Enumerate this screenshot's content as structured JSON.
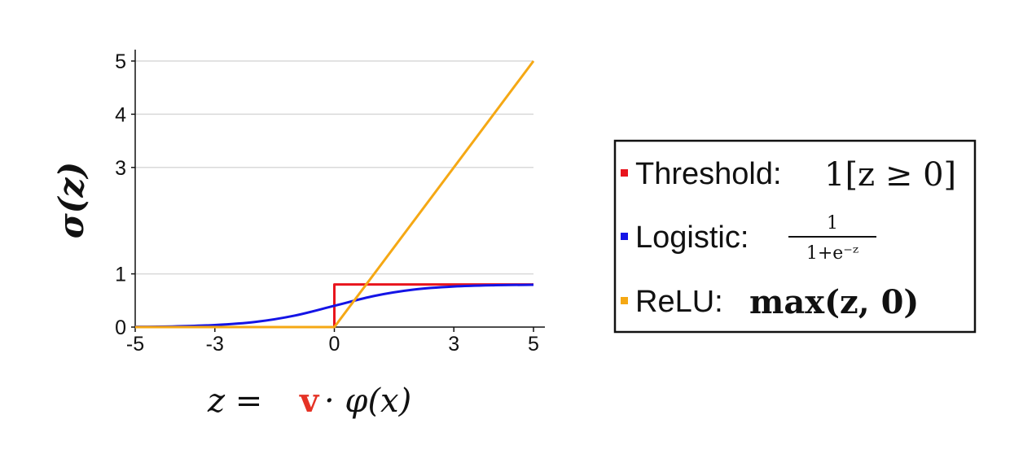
{
  "chart_data": {
    "type": "line",
    "xlabel": {
      "prefix": "z =",
      "vector": "v",
      "suffix": "· φ(x)"
    },
    "ylabel": "σ(z)",
    "xlim": [
      -5,
      5
    ],
    "ylim": [
      0,
      5
    ],
    "xticks": [
      -5,
      -3,
      0,
      3,
      5
    ],
    "yticks": [
      0,
      1,
      3,
      4,
      5
    ],
    "grid_y": true,
    "legend_position": "right",
    "series": [
      {
        "name": "Threshold:",
        "formula": "1[z ≥ 0]",
        "color": "#e8141d",
        "x": [
          -5,
          0,
          0,
          5
        ],
        "y": [
          0,
          0,
          0.8,
          0.8
        ]
      },
      {
        "name": "Logistic:",
        "formula_num": "1",
        "formula_den": "1+e⁻ᶻ",
        "color": "#1414e6",
        "x": [
          -5,
          -4,
          -3,
          -2,
          -1,
          0,
          1,
          2,
          3,
          4,
          5
        ],
        "y": [
          0.005,
          0.014,
          0.038,
          0.095,
          0.215,
          0.4,
          0.585,
          0.705,
          0.762,
          0.786,
          0.795
        ]
      },
      {
        "name": "ReLU:",
        "formula": "max(z, 0)",
        "color": "#f5a814",
        "x": [
          -5,
          0,
          5
        ],
        "y": [
          0,
          0,
          5
        ]
      }
    ]
  }
}
